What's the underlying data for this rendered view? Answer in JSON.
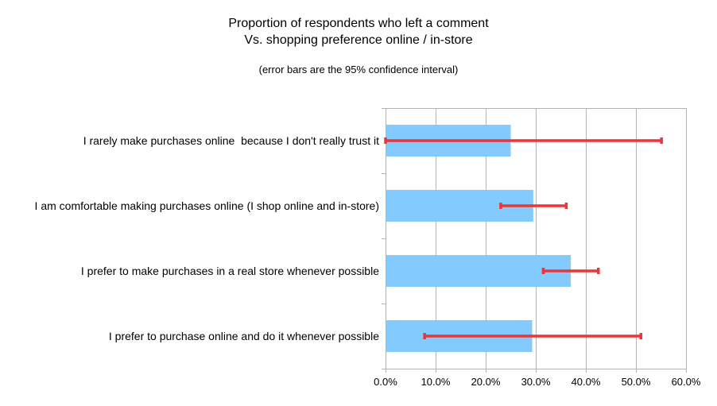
{
  "chart_data": {
    "type": "bar",
    "orientation": "horizontal",
    "title": "Proportion of respondents who left a comment",
    "subtitle": "Vs. shopping preference online / in-store",
    "note": "(error bars are the 95% confidence interval)",
    "categories": [
      "I rarely make purchases online  because I don't really trust it",
      "I am comfortable making purchases online (I shop online and in-store)",
      "I prefer to make purchases in a real store whenever possible",
      "I prefer to purchase online and do it whenever possible"
    ],
    "values": [
      0.25,
      0.295,
      0.37,
      0.293
    ],
    "error_low": [
      0.0,
      0.23,
      0.315,
      0.078
    ],
    "error_high": [
      0.551,
      0.361,
      0.425,
      0.51
    ],
    "xlim": [
      0,
      0.6
    ],
    "x_ticks": [
      0,
      0.1,
      0.2,
      0.3,
      0.4,
      0.5,
      0.6
    ],
    "x_tick_labels": [
      "0.0%",
      "10.0%",
      "20.0%",
      "30.0%",
      "40.0%",
      "50.0%",
      "60.0%"
    ],
    "grid": "vertical",
    "legend": "none",
    "colors": {
      "bar": "#83caff",
      "error_bar": "#e8363a",
      "grid": "#b3b3b3",
      "axis": "#b3b3b3",
      "text": "#000000"
    }
  }
}
